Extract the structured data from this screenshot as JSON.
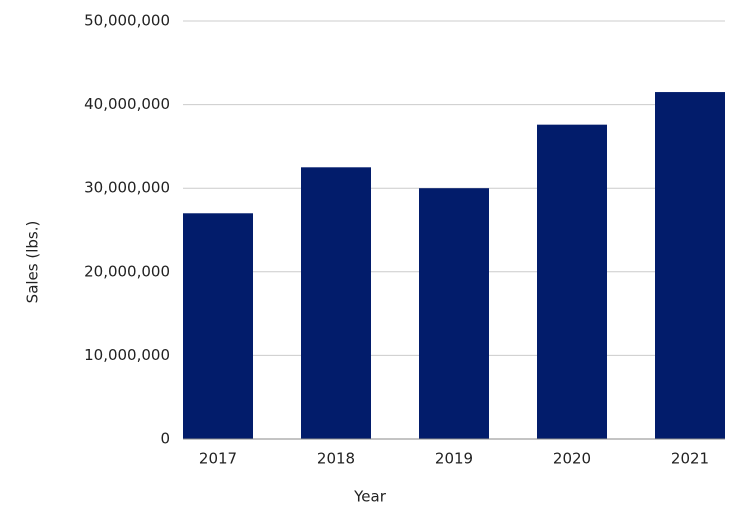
{
  "chart_data": {
    "type": "bar",
    "x_label": "Year",
    "y_label": "Sales (lbs.)",
    "categories": [
      "2017",
      "2018",
      "2019",
      "2020",
      "2021"
    ],
    "values": [
      27000000,
      32500000,
      30000000,
      37600000,
      41500000
    ],
    "color": "#021c6b",
    "ylim": [
      0,
      50000000
    ],
    "yticks": [
      0,
      {
        "value": 10000000,
        "label": "10,000,000"
      },
      {
        "value": 20000000,
        "label": "20,000,000"
      },
      {
        "value": 30000000,
        "label": "30,000,000"
      },
      {
        "value": 40000000,
        "label": "40,000,000"
      },
      {
        "value": 50000000,
        "label": "50,000,000"
      }
    ],
    "grid": true
  }
}
